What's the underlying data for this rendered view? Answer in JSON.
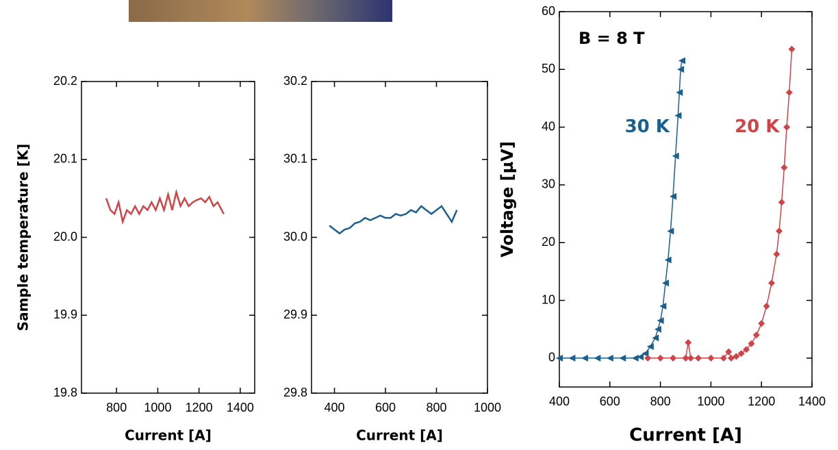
{
  "chart_data": [
    {
      "type": "line",
      "xlabel": "Current [A]",
      "ylabel": "Sample temperature [K]",
      "xlim": [
        630,
        1470
      ],
      "xticks": [
        800,
        1000,
        1200,
        1400
      ],
      "ylim": [
        19.8,
        20.2
      ],
      "yticks": [
        19.8,
        19.9,
        {
          "value": 20,
          "label": "20.0"
        },
        20.1,
        20.2
      ],
      "series": [
        {
          "color": "#d04448",
          "x": [
            750,
            770,
            790,
            810,
            830,
            850,
            870,
            890,
            910,
            930,
            950,
            970,
            990,
            1010,
            1030,
            1050,
            1070,
            1090,
            1110,
            1130,
            1150,
            1170,
            1190,
            1210,
            1230,
            1250,
            1270,
            1290,
            1310,
            1320
          ],
          "values": [
            20.05,
            20.035,
            20.03,
            20.045,
            20.02,
            20.035,
            20.03,
            20.04,
            20.03,
            20.04,
            20.035,
            20.045,
            20.035,
            20.05,
            20.035,
            20.055,
            20.035,
            20.058,
            20.04,
            20.05,
            20.04,
            20.045,
            20.048,
            20.05,
            20.045,
            20.052,
            20.04,
            20.045,
            20.035,
            20.03
          ]
        }
      ]
    },
    {
      "type": "line",
      "xlabel": "Current [A]",
      "xlim": [
        310,
        1000
      ],
      "xticks": [
        400,
        600,
        800,
        1000
      ],
      "ylim": [
        29.8,
        30.2
      ],
      "yticks": [
        29.8,
        29.9,
        {
          "value": 30,
          "label": "30.0"
        },
        30.1,
        30.2
      ],
      "series": [
        {
          "color": "#1a5f8e",
          "x": [
            380,
            400,
            420,
            440,
            460,
            480,
            500,
            520,
            540,
            560,
            580,
            600,
            620,
            640,
            660,
            680,
            700,
            720,
            740,
            760,
            780,
            800,
            820,
            840,
            860,
            880
          ],
          "values": [
            30.015,
            30.01,
            30.005,
            30.01,
            30.012,
            30.018,
            30.02,
            30.025,
            30.022,
            30.025,
            30.028,
            30.025,
            30.025,
            30.03,
            30.028,
            30.03,
            30.035,
            30.032,
            30.04,
            30.035,
            30.03,
            30.035,
            30.04,
            30.03,
            30.02,
            30.035
          ]
        }
      ]
    },
    {
      "type": "line",
      "xlabel": "Current [A]",
      "ylabel": "Voltage [µV]",
      "annotations": [
        "B = 8 T"
      ],
      "xlim": [
        400,
        1400
      ],
      "xticks": [
        400,
        600,
        800,
        1000,
        1200,
        1400
      ],
      "ylim": [
        -5,
        60
      ],
      "yticks": [
        0,
        10,
        20,
        30,
        40,
        50,
        60
      ],
      "series": [
        {
          "name": "30 K",
          "color": "#1a5f8e",
          "marker": "triangle",
          "x": [
            400,
            450,
            500,
            550,
            600,
            650,
            700,
            720,
            740,
            760,
            780,
            790,
            800,
            810,
            820,
            830,
            840,
            850,
            860,
            870,
            875,
            880,
            885
          ],
          "values": [
            0,
            0,
            0,
            0,
            0,
            0,
            0,
            0.2,
            0.8,
            2,
            3.5,
            5,
            6.5,
            9,
            13,
            17,
            22,
            28,
            35,
            42,
            46,
            50,
            51.5
          ]
        },
        {
          "name": "20 K",
          "color": "#d04448",
          "marker": "diamond",
          "x": [
            750,
            800,
            850,
            900,
            910,
            920,
            950,
            1000,
            1050,
            1070,
            1080,
            1100,
            1120,
            1140,
            1160,
            1180,
            1200,
            1220,
            1240,
            1260,
            1270,
            1280,
            1290,
            1300,
            1310,
            1320
          ],
          "values": [
            0,
            0,
            0,
            0,
            2.7,
            0,
            0,
            0,
            0,
            1.1,
            0,
            0.3,
            0.8,
            1.5,
            2.5,
            4,
            6,
            9,
            13,
            18,
            22,
            27,
            33,
            40,
            46,
            53.5
          ]
        }
      ]
    }
  ]
}
